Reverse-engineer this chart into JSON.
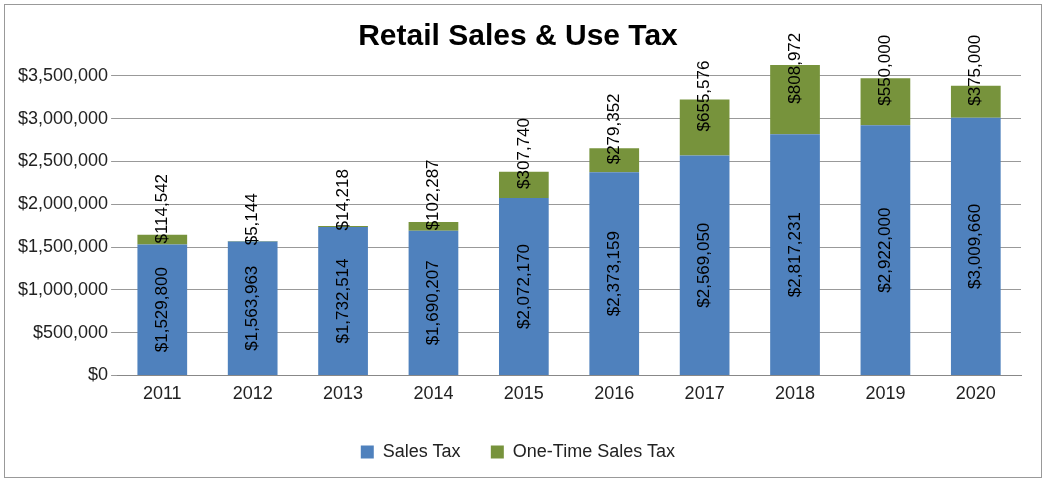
{
  "chart_data": {
    "type": "bar",
    "title": "Retail Sales & Use Tax",
    "stacked": true,
    "categories": [
      "2011",
      "2012",
      "2013",
      "2014",
      "2015",
      "2016",
      "2017",
      "2018",
      "2019",
      "2020"
    ],
    "series": [
      {
        "name": "Sales Tax",
        "color": "#4f81bd",
        "values": [
          1529800,
          1563963,
          1732514,
          1690207,
          2072170,
          2373159,
          2569050,
          2817231,
          2922000,
          3009660
        ],
        "value_labels": [
          "$1,529,800",
          "$1,563,963",
          "$1,732,514",
          "$1,690,207",
          "$2,072,170",
          "$2,373,159",
          "$2,569,050",
          "$2,817,231",
          "$2,922,000",
          "$3,009,660"
        ]
      },
      {
        "name": "One-Time Sales Tax",
        "color": "#77933c",
        "values": [
          114542,
          5144,
          14218,
          102287,
          307740,
          279352,
          655576,
          808972,
          550000,
          375000
        ],
        "value_labels": [
          "$114,542",
          "$5,144",
          "$14,218",
          "$102,287",
          "$307,740",
          "$279,352",
          "$655,576",
          "$808,972",
          "$550,000",
          "$375,000"
        ]
      }
    ],
    "ylim": [
      0,
      3650000
    ],
    "yticks": [
      {
        "value": 0,
        "label": "$0"
      },
      {
        "value": 500000,
        "label": "$500,000"
      },
      {
        "value": 1000000,
        "label": "$1,000,000"
      },
      {
        "value": 1500000,
        "label": "$1,500,000"
      },
      {
        "value": 2000000,
        "label": "$2,000,000"
      },
      {
        "value": 2500000,
        "label": "$2,500,000"
      },
      {
        "value": 3000000,
        "label": "$3,000,000"
      },
      {
        "value": 3500000,
        "label": "$3,500,000"
      }
    ],
    "grid": "y",
    "legend": "bottom"
  }
}
